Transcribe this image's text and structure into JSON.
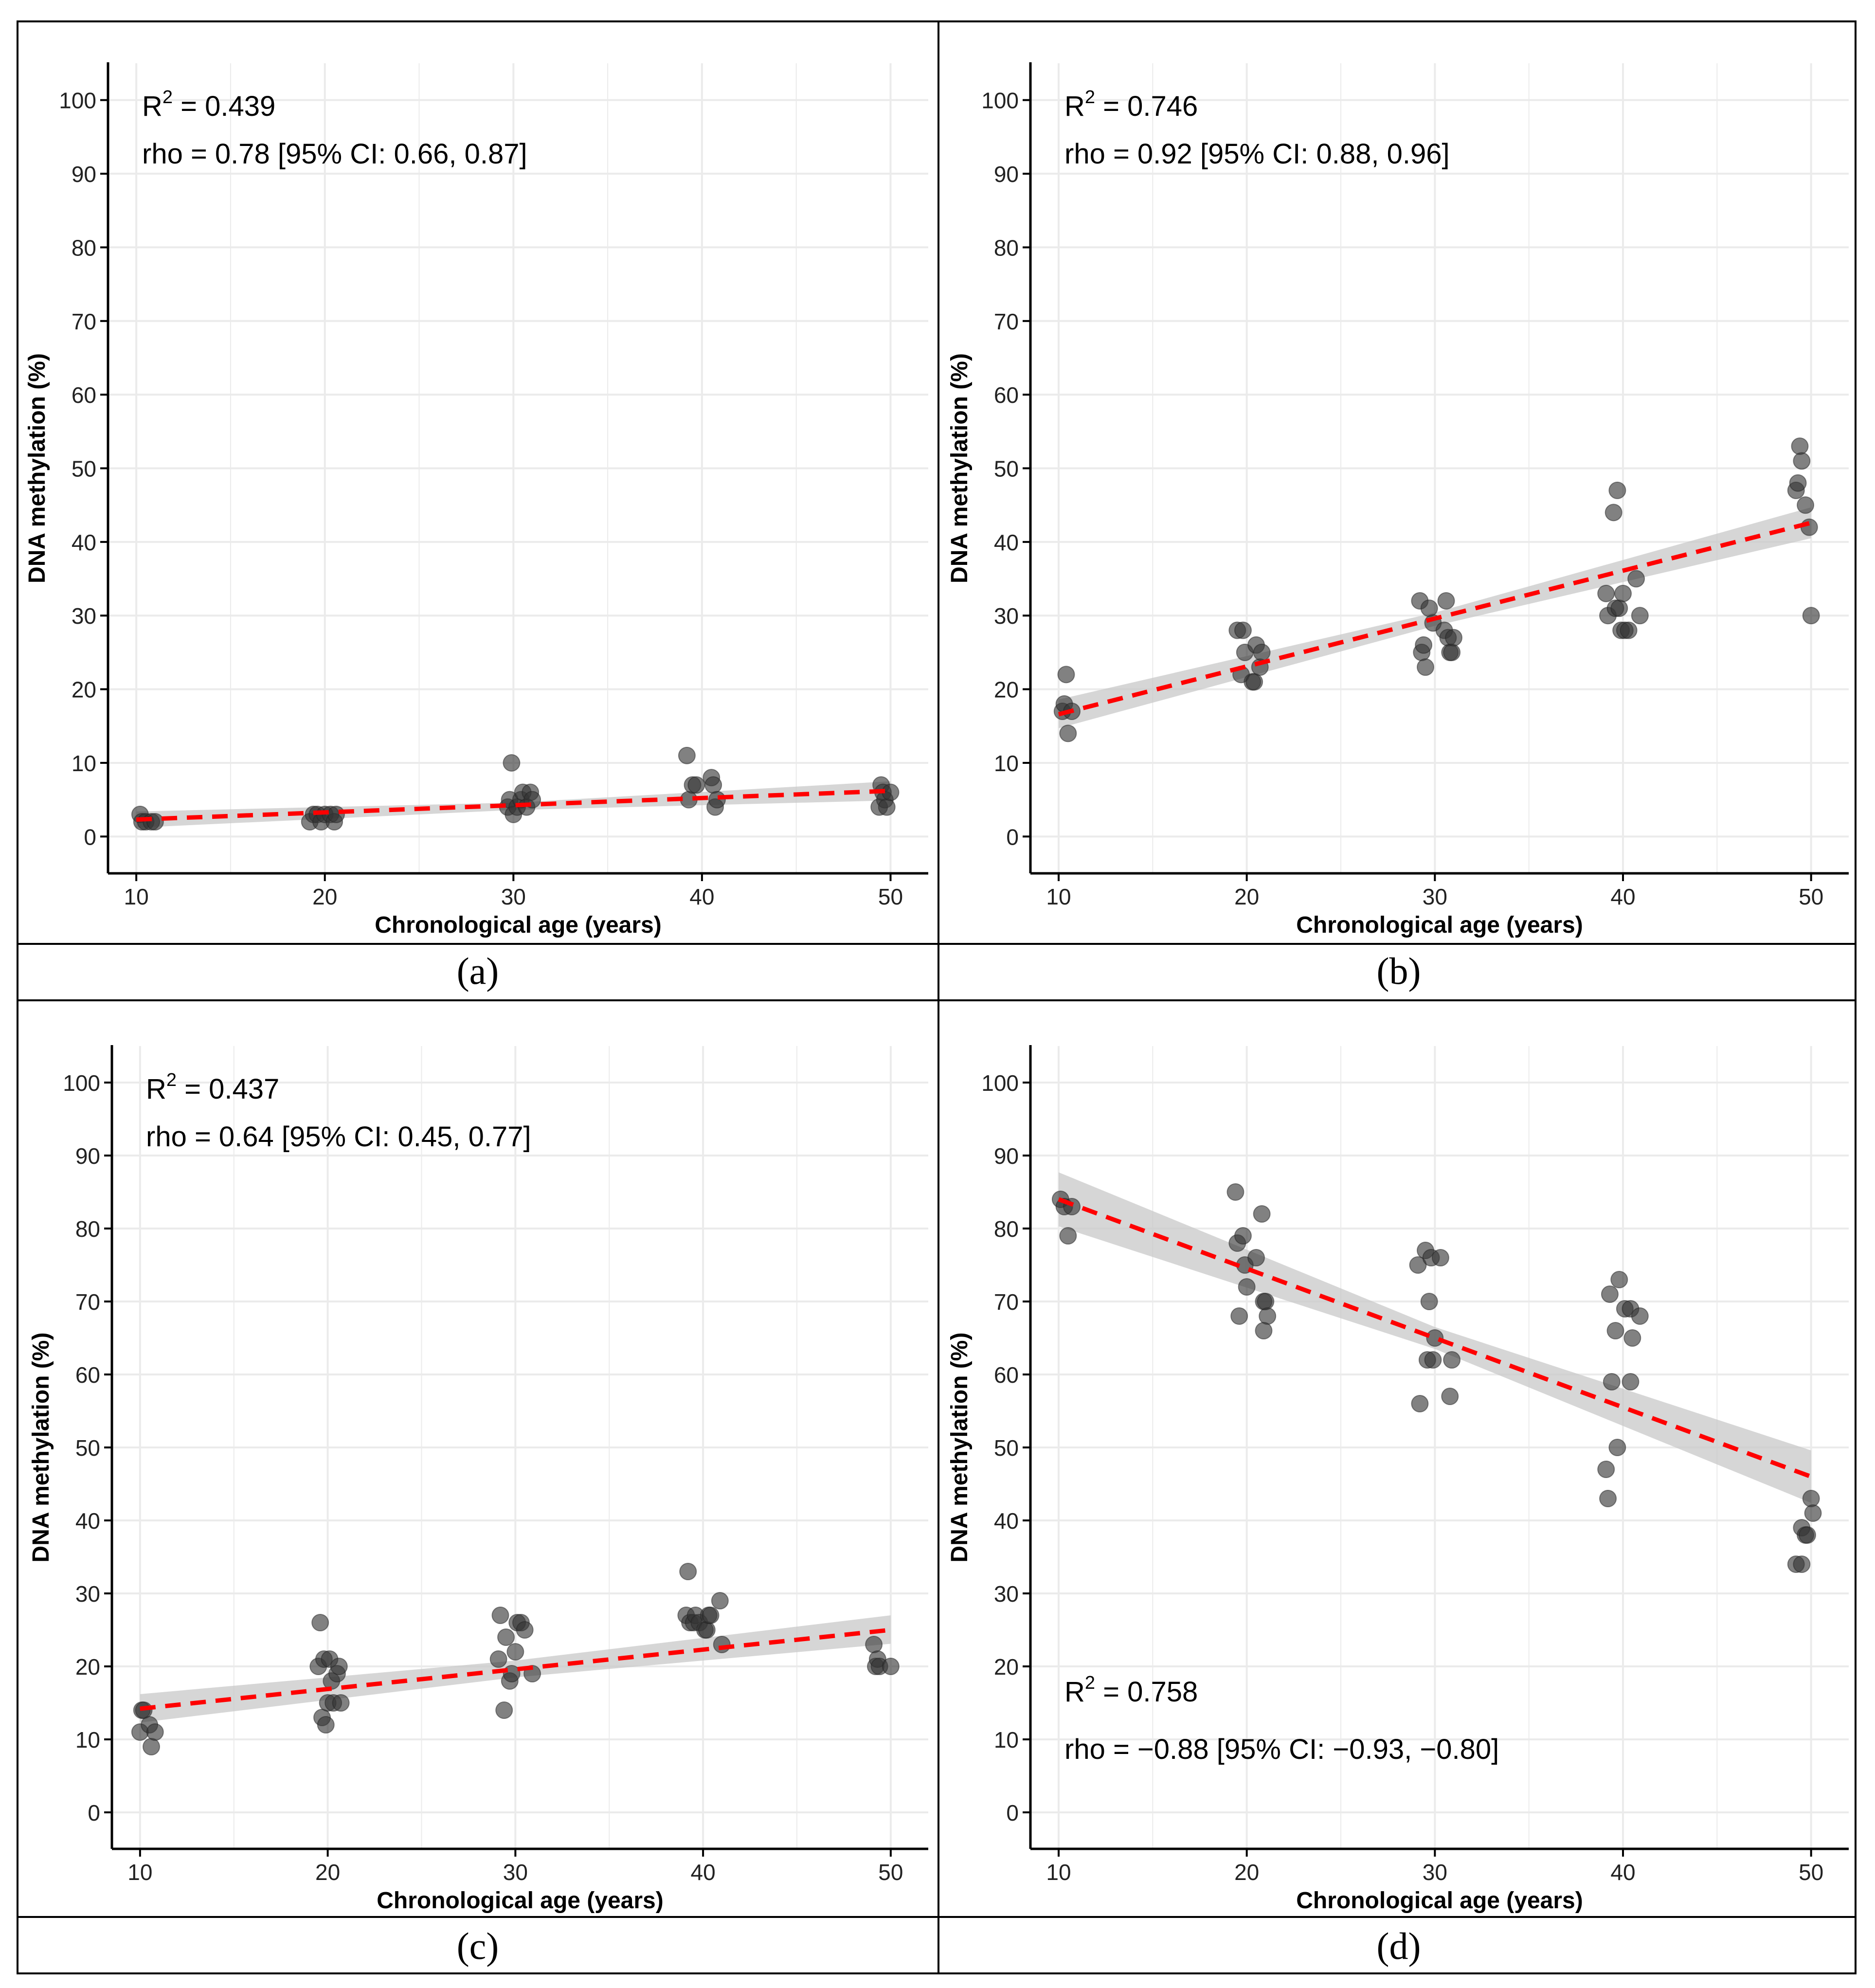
{
  "figure": {
    "panel_captions": [
      "(a)",
      "(b)",
      "(c)",
      "(d)"
    ]
  },
  "chart_data": [
    {
      "type": "scatter",
      "panel": "a",
      "xlabel": "Chronological age (years)",
      "ylabel": "DNA methylation (%)",
      "xlim": [
        8.5,
        52
      ],
      "ylim": [
        -5,
        105
      ],
      "xticks": [
        "10",
        "20",
        "30",
        "40",
        "50"
      ],
      "yticks": [
        "0",
        "10",
        "20",
        "30",
        "40",
        "50",
        "60",
        "70",
        "80",
        "90",
        "100"
      ],
      "r2_label": "R",
      "r2_exp": "2",
      "r2_value": " = 0.439",
      "rho_text": "rho = 0.78 [95% CI: 0.66, 0.87]",
      "stats_position": "top-left",
      "points": [
        [
          10.2,
          3
        ],
        [
          10.3,
          2
        ],
        [
          10.5,
          2
        ],
        [
          10.8,
          2
        ],
        [
          11,
          2
        ],
        [
          19.2,
          2
        ],
        [
          19.4,
          3
        ],
        [
          19.6,
          3
        ],
        [
          19.8,
          2
        ],
        [
          20,
          3
        ],
        [
          20.3,
          3
        ],
        [
          20.5,
          2
        ],
        [
          20.6,
          3
        ],
        [
          29.7,
          4
        ],
        [
          29.8,
          5
        ],
        [
          29.9,
          10
        ],
        [
          30,
          3
        ],
        [
          30.2,
          4
        ],
        [
          30.4,
          5
        ],
        [
          30.5,
          6
        ],
        [
          30.7,
          4
        ],
        [
          30.9,
          6
        ],
        [
          31,
          5
        ],
        [
          39.2,
          11
        ],
        [
          39.3,
          5
        ],
        [
          39.5,
          7
        ],
        [
          39.7,
          7
        ],
        [
          40.5,
          8
        ],
        [
          40.6,
          7
        ],
        [
          40.7,
          4
        ],
        [
          40.8,
          5
        ],
        [
          49.4,
          4
        ],
        [
          49.5,
          7
        ],
        [
          49.6,
          6
        ],
        [
          49.7,
          5
        ],
        [
          49.8,
          4
        ],
        [
          50,
          6
        ]
      ],
      "fit": {
        "x": [
          10,
          50
        ],
        "y": [
          2.3,
          6.2
        ]
      },
      "band": {
        "x": [
          10,
          30,
          50
        ],
        "lower": [
          1.2,
          3.6,
          4.9
        ],
        "upper": [
          3.4,
          4.6,
          7.5
        ]
      }
    },
    {
      "type": "scatter",
      "panel": "b",
      "xlabel": "Chronological age (years)",
      "ylabel": "DNA methylation (%)",
      "xlim": [
        8.5,
        52
      ],
      "ylim": [
        -5,
        105
      ],
      "xticks": [
        "10",
        "20",
        "30",
        "40",
        "50"
      ],
      "yticks": [
        "0",
        "10",
        "20",
        "30",
        "40",
        "50",
        "60",
        "70",
        "80",
        "90",
        "100"
      ],
      "r2_label": "R",
      "r2_exp": "2",
      "r2_value": " = 0.746",
      "rho_text": "rho = 0.92 [95% CI: 0.88, 0.96]",
      "stats_position": "top-left",
      "points": [
        [
          10.2,
          17
        ],
        [
          10.3,
          18
        ],
        [
          10.4,
          22
        ],
        [
          10.5,
          14
        ],
        [
          10.7,
          17
        ],
        [
          19.5,
          28
        ],
        [
          19.7,
          22
        ],
        [
          19.8,
          28
        ],
        [
          19.9,
          25
        ],
        [
          20.3,
          21
        ],
        [
          20.4,
          21
        ],
        [
          20.5,
          26
        ],
        [
          20.7,
          23
        ],
        [
          20.8,
          25
        ],
        [
          29.2,
          32
        ],
        [
          29.3,
          25
        ],
        [
          29.4,
          26
        ],
        [
          29.5,
          23
        ],
        [
          29.7,
          31
        ],
        [
          29.9,
          29
        ],
        [
          30.5,
          28
        ],
        [
          30.6,
          32
        ],
        [
          30.7,
          27
        ],
        [
          30.8,
          25
        ],
        [
          30.9,
          25
        ],
        [
          31,
          27
        ],
        [
          39.1,
          33
        ],
        [
          39.2,
          30
        ],
        [
          39.5,
          44
        ],
        [
          39.6,
          31
        ],
        [
          39.7,
          47
        ],
        [
          39.8,
          31
        ],
        [
          39.9,
          28
        ],
        [
          40,
          33
        ],
        [
          40.1,
          28
        ],
        [
          40.3,
          28
        ],
        [
          40.7,
          35
        ],
        [
          40.9,
          30
        ],
        [
          49.2,
          47
        ],
        [
          49.3,
          48
        ],
        [
          49.4,
          53
        ],
        [
          49.5,
          51
        ],
        [
          49.7,
          45
        ],
        [
          49.9,
          42
        ],
        [
          50,
          30
        ]
      ],
      "fit": {
        "x": [
          10,
          50
        ],
        "y": [
          16.6,
          42.6
        ]
      },
      "band": {
        "x": [
          10,
          30,
          50
        ],
        "lower": [
          14.7,
          28.6,
          40.5
        ],
        "upper": [
          18.6,
          30.4,
          44.7
        ]
      }
    },
    {
      "type": "scatter",
      "panel": "c",
      "xlabel": "Chronological age (years)",
      "ylabel": "DNA methylation (%)",
      "xlim": [
        8.5,
        52
      ],
      "ylim": [
        -5,
        105
      ],
      "xticks": [
        "10",
        "20",
        "30",
        "40",
        "50"
      ],
      "yticks": [
        "0",
        "10",
        "20",
        "30",
        "40",
        "50",
        "60",
        "70",
        "80",
        "90",
        "100"
      ],
      "r2_label": "R",
      "r2_exp": "2",
      "r2_value": " = 0.437",
      "rho_text": "rho = 0.64 [95% CI: 0.45, 0.77]",
      "stats_position": "top-left",
      "points": [
        [
          10,
          11
        ],
        [
          10.1,
          14
        ],
        [
          10.2,
          14
        ],
        [
          10.5,
          12
        ],
        [
          10.6,
          9
        ],
        [
          10.8,
          11
        ],
        [
          19.5,
          20
        ],
        [
          19.6,
          26
        ],
        [
          19.7,
          13
        ],
        [
          19.8,
          21
        ],
        [
          19.9,
          12
        ],
        [
          20,
          15
        ],
        [
          20.1,
          21
        ],
        [
          20.2,
          18
        ],
        [
          20.3,
          15
        ],
        [
          20.5,
          19
        ],
        [
          20.6,
          20
        ],
        [
          20.7,
          15
        ],
        [
          29.2,
          27
        ],
        [
          29.1,
          21
        ],
        [
          29.4,
          14
        ],
        [
          29.5,
          24
        ],
        [
          29.7,
          18
        ],
        [
          29.8,
          19
        ],
        [
          30,
          22
        ],
        [
          30.1,
          26
        ],
        [
          30.3,
          26
        ],
        [
          30.5,
          25
        ],
        [
          30.9,
          19
        ],
        [
          39.1,
          27
        ],
        [
          39.2,
          33
        ],
        [
          39.3,
          26
        ],
        [
          39.5,
          26
        ],
        [
          39.6,
          27
        ],
        [
          39.8,
          26
        ],
        [
          40.1,
          25
        ],
        [
          40.2,
          25
        ],
        [
          40.3,
          27
        ],
        [
          40.4,
          27
        ],
        [
          40.9,
          29
        ],
        [
          41,
          23
        ],
        [
          49.1,
          23
        ],
        [
          49.2,
          20
        ],
        [
          49.3,
          21
        ],
        [
          49.4,
          20
        ],
        [
          50,
          20
        ]
      ],
      "fit": {
        "x": [
          10,
          50
        ],
        "y": [
          14.2,
          25
        ]
      },
      "band": {
        "x": [
          10,
          30,
          50
        ],
        "lower": [
          12.3,
          18.5,
          23.1
        ],
        "upper": [
          16.2,
          20.8,
          27
        ]
      }
    },
    {
      "type": "scatter",
      "panel": "d",
      "xlabel": "Chronological age (years)",
      "ylabel": "DNA methylation (%)",
      "xlim": [
        8.5,
        52
      ],
      "ylim": [
        -5,
        105
      ],
      "xticks": [
        "10",
        "20",
        "30",
        "40",
        "50"
      ],
      "yticks": [
        "0",
        "10",
        "20",
        "30",
        "40",
        "50",
        "60",
        "70",
        "80",
        "90",
        "100"
      ],
      "r2_label": "R",
      "r2_exp": "2",
      "r2_value": " = 0.758",
      "rho_text": "rho = −0.88 [95% CI: −0.93, −0.80]",
      "stats_position": "bottom-left",
      "points": [
        [
          10.1,
          84
        ],
        [
          10.3,
          83
        ],
        [
          10.5,
          79
        ],
        [
          10.7,
          83
        ],
        [
          19.4,
          85
        ],
        [
          19.5,
          78
        ],
        [
          19.6,
          68
        ],
        [
          19.8,
          79
        ],
        [
          19.9,
          75
        ],
        [
          20,
          72
        ],
        [
          20.5,
          76
        ],
        [
          20.8,
          82
        ],
        [
          20.9,
          70
        ],
        [
          21,
          70
        ],
        [
          21.1,
          68
        ],
        [
          20.9,
          66
        ],
        [
          29.1,
          75
        ],
        [
          29.2,
          56
        ],
        [
          29.5,
          77
        ],
        [
          29.6,
          62
        ],
        [
          29.7,
          70
        ],
        [
          29.8,
          76
        ],
        [
          29.9,
          62
        ],
        [
          30,
          65
        ],
        [
          30.3,
          76
        ],
        [
          30.8,
          57
        ],
        [
          30.9,
          62
        ],
        [
          39.1,
          47
        ],
        [
          39.2,
          43
        ],
        [
          39.3,
          71
        ],
        [
          39.4,
          59
        ],
        [
          39.6,
          66
        ],
        [
          39.7,
          50
        ],
        [
          39.8,
          73
        ],
        [
          40.1,
          69
        ],
        [
          40.4,
          69
        ],
        [
          40.5,
          65
        ],
        [
          40.4,
          59
        ],
        [
          40.9,
          68
        ],
        [
          49.2,
          34
        ],
        [
          49.5,
          34
        ],
        [
          49.5,
          39
        ],
        [
          49.7,
          38
        ],
        [
          49.8,
          38
        ],
        [
          50,
          43
        ],
        [
          50.1,
          41
        ]
      ],
      "fit": {
        "x": [
          10,
          50
        ],
        "y": [
          84,
          46
        ]
      },
      "band": {
        "x": [
          10,
          30,
          50
        ],
        "lower": [
          80.3,
          63.5,
          42.4
        ],
        "upper": [
          87.7,
          66.5,
          49.6
        ]
      }
    }
  ]
}
